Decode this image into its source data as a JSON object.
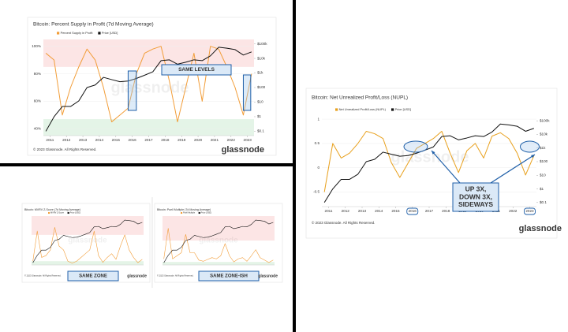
{
  "chart_data": [
    {
      "type": "line",
      "title": "Bitcoin: Percent Supply in Profit (7d Moving Average)",
      "x": [
        2010.75,
        2011.25,
        2011.75,
        2012.25,
        2012.75,
        2013.25,
        2013.75,
        2014.25,
        2014.75,
        2015.25,
        2015.75,
        2016.25,
        2016.75,
        2017.25,
        2017.75,
        2018.25,
        2018.75,
        2019.25,
        2019.75,
        2020.25,
        2020.75,
        2021.25,
        2021.75,
        2022.25,
        2022.75,
        2023.25
      ],
      "series": [
        {
          "name": "Percent Supply in Profit",
          "color": "#f29d38",
          "values": [
            95,
            90,
            50,
            70,
            85,
            98,
            90,
            70,
            45,
            50,
            55,
            80,
            95,
            98,
            100,
            75,
            45,
            70,
            95,
            60,
            100,
            98,
            85,
            70,
            50,
            80
          ]
        },
        {
          "name": "Price [USD]",
          "color": "#111111",
          "axis": "y2",
          "values": [
            0.1,
            1,
            5,
            5,
            12,
            100,
            150,
            500,
            350,
            250,
            280,
            420,
            700,
            1200,
            7000,
            8000,
            4000,
            5500,
            8000,
            7000,
            15000,
            58000,
            50000,
            40000,
            17000,
            28000
          ]
        }
      ],
      "xlim": [
        2010.6,
        2023.4
      ],
      "xticks": [
        2011,
        2012,
        2013,
        2014,
        2015,
        2016,
        2017,
        2018,
        2019,
        2020,
        2021,
        2022,
        2023
      ],
      "ylim": [
        35,
        105
      ],
      "yticks": [
        {
          "value": 40,
          "label": "40%"
        },
        {
          "value": 60,
          "label": "60%"
        },
        {
          "value": 80,
          "label": "80%"
        },
        {
          "value": 100,
          "label": "100%"
        }
      ],
      "y2lim": [
        0.05,
        200000
      ],
      "y2scale": "log",
      "y2ticks": [
        {
          "value": 0.1,
          "label": "$0.1"
        },
        {
          "value": 1,
          "label": "$1"
        },
        {
          "value": 10,
          "label": "$10"
        },
        {
          "value": 100,
          "label": "$100"
        },
        {
          "value": 1000,
          "label": "$1k"
        },
        {
          "value": 10000,
          "label": "$10k"
        },
        {
          "value": 100000,
          "label": "$100k"
        }
      ],
      "zones": [
        {
          "from": 85,
          "to": 105,
          "color": "#fbe1e1"
        },
        {
          "from": 35,
          "to": 47,
          "color": "#dff2e3"
        }
      ],
      "annotations": [
        [
          "SAME LEVELS"
        ]
      ],
      "watermark": "glassnode",
      "footer": "© 2023 Glassnode. All Rights Reserved.",
      "brand": "glassnode"
    },
    {
      "type": "line",
      "title": "Bitcoin: Net Unrealized Profit/Loss (NUPL)",
      "x": [
        2010.75,
        2011.25,
        2011.75,
        2012.25,
        2012.75,
        2013.25,
        2013.75,
        2014.25,
        2014.75,
        2015.25,
        2015.75,
        2016.25,
        2016.75,
        2017.25,
        2017.75,
        2018.25,
        2018.75,
        2019.25,
        2019.75,
        2020.25,
        2020.75,
        2021.25,
        2021.75,
        2022.25,
        2022.75,
        2023.25
      ],
      "series": [
        {
          "name": "Net Unrealized Profit/Loss (NUPL)",
          "color": "#e8a01c",
          "values": [
            -0.5,
            0.5,
            0.2,
            0.3,
            0.5,
            0.75,
            0.7,
            0.6,
            0.1,
            -0.2,
            0.1,
            0.4,
            0.5,
            0.6,
            0.75,
            0.3,
            -0.1,
            0.35,
            0.5,
            0.2,
            0.65,
            0.72,
            0.6,
            0.3,
            -0.15,
            0.25
          ]
        },
        {
          "name": "Price [USD]",
          "color": "#111111",
          "axis": "y2",
          "values": [
            0.1,
            1,
            5,
            5,
            12,
            100,
            150,
            500,
            350,
            250,
            280,
            420,
            700,
            1200,
            7000,
            8000,
            4000,
            5500,
            8000,
            7000,
            15000,
            58000,
            50000,
            40000,
            17000,
            28000
          ]
        }
      ],
      "xlim": [
        2010.6,
        2023.4
      ],
      "xticks": [
        2011,
        2012,
        2013,
        2014,
        2015,
        2016,
        2017,
        2018,
        2019,
        2020,
        2021,
        2022,
        2023
      ],
      "ylim": [
        -0.8,
        1.05
      ],
      "yticks": [
        -0.5,
        0,
        0.5,
        1
      ],
      "y2lim": [
        0.05,
        200000
      ],
      "y2scale": "log",
      "y2ticks": [
        {
          "value": 0.1,
          "label": "$0.1"
        },
        {
          "value": 1,
          "label": "$1"
        },
        {
          "value": 10,
          "label": "$10"
        },
        {
          "value": 100,
          "label": "$100"
        },
        {
          "value": 1000,
          "label": "$1k"
        },
        {
          "value": 10000,
          "label": "$10k"
        },
        {
          "value": 100000,
          "label": "$100k"
        }
      ],
      "zones": [],
      "annotations": [
        [
          "UP 3X,",
          "DOWN 3X,",
          "SIDEWAYS"
        ]
      ],
      "watermark": "glassnode",
      "footer": "© 2023 Glassnode. All Rights Reserved.",
      "brand": "glassnode"
    },
    {
      "type": "line",
      "title": "Bitcoin: MVRV Z-Score (7d Moving Average)",
      "x": [
        2010.75,
        2011.25,
        2011.75,
        2012.25,
        2012.75,
        2013.25,
        2013.75,
        2014.25,
        2014.75,
        2015.25,
        2015.75,
        2016.25,
        2016.75,
        2017.25,
        2017.75,
        2018.25,
        2018.75,
        2019.25,
        2019.75,
        2020.25,
        2020.75,
        2021.25,
        2021.75,
        2022.25,
        2022.75,
        2023.25
      ],
      "series": [
        {
          "name": "MVRV Z-Score",
          "color": "#f29d38",
          "values": [
            0,
            8,
            1,
            1.5,
            3,
            9,
            4,
            3,
            0,
            -0.5,
            0,
            1,
            2,
            3,
            8,
            1.5,
            -0.3,
            1,
            2,
            0.5,
            4,
            7,
            3,
            1,
            -0.4,
            0.5
          ]
        },
        {
          "name": "Price [USD]",
          "color": "#111111",
          "axis": "y2",
          "values": [
            0.1,
            1,
            5,
            5,
            12,
            100,
            150,
            500,
            350,
            250,
            280,
            420,
            700,
            1200,
            7000,
            8000,
            4000,
            5500,
            8000,
            7000,
            15000,
            58000,
            50000,
            40000,
            17000,
            28000
          ]
        }
      ],
      "xlim": [
        2010.6,
        2023.4
      ],
      "ylim": [
        -1,
        12
      ],
      "y2lim": [
        0.05,
        200000
      ],
      "y2scale": "log",
      "zones": [
        {
          "from": 7,
          "to": 12,
          "color": "#fbe1e1"
        },
        {
          "from": -1,
          "to": 0,
          "color": "#dff2e3"
        }
      ],
      "annotations": [
        [
          "SAME ZONE"
        ]
      ],
      "watermark": "glassnode",
      "footer": "© 2023 Glassnode. All Rights Reserved.",
      "brand": "glassnode"
    },
    {
      "type": "line",
      "title": "Bitcoin: Puell Multiple (7d Moving Average)",
      "x": [
        2010.75,
        2011.25,
        2011.75,
        2012.25,
        2012.75,
        2013.25,
        2013.75,
        2014.25,
        2014.75,
        2015.25,
        2015.75,
        2016.25,
        2016.75,
        2017.25,
        2017.75,
        2018.25,
        2018.75,
        2019.25,
        2019.75,
        2020.25,
        2020.75,
        2021.25,
        2021.75,
        2022.25,
        2022.75,
        2023.25
      ],
      "series": [
        {
          "name": "Puell Multiple",
          "color": "#f29d38",
          "values": [
            1,
            6,
            1,
            1.5,
            2,
            5,
            2,
            2,
            0.8,
            0.6,
            0.9,
            1.2,
            1,
            1.5,
            3.5,
            1.5,
            0.5,
            1,
            1.2,
            0.6,
            1.5,
            2.5,
            1.2,
            0.8,
            0.4,
            0.8
          ]
        },
        {
          "name": "Price [USD]",
          "color": "#111111",
          "axis": "y2",
          "values": [
            0.1,
            1,
            5,
            5,
            12,
            100,
            150,
            500,
            350,
            250,
            280,
            420,
            700,
            1200,
            7000,
            8000,
            4000,
            5500,
            8000,
            7000,
            15000,
            58000,
            50000,
            40000,
            17000,
            28000
          ]
        }
      ],
      "xlim": [
        2010.6,
        2023.4
      ],
      "ylim": [
        0,
        8
      ],
      "y2lim": [
        0.05,
        200000
      ],
      "y2scale": "log",
      "zones": [
        {
          "from": 4,
          "to": 8,
          "color": "#fbe1e1"
        },
        {
          "from": 0,
          "to": 0.5,
          "color": "#dff2e3"
        }
      ],
      "annotations": [
        [
          "SAME ZONE-ISH"
        ]
      ],
      "watermark": "glassnode",
      "footer": "© 2023 Glassnode. All Rights Reserved.",
      "brand": "glassnode"
    }
  ]
}
